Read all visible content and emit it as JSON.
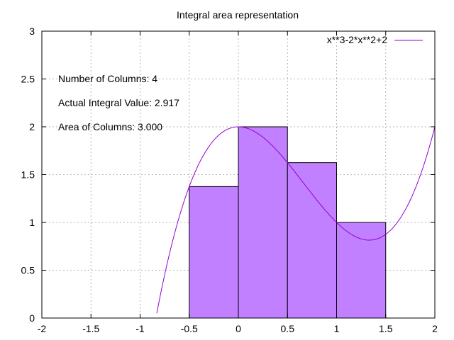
{
  "chart_data": {
    "type": "bar",
    "title": "Integral area representation",
    "xlabel": "",
    "ylabel": "",
    "xlim": [
      -2,
      2
    ],
    "ylim": [
      0,
      3
    ],
    "x_ticks": [
      "-2",
      "-1.5",
      "-1",
      "-0.5",
      "0",
      "0.5",
      "1",
      "1.5",
      "2"
    ],
    "y_ticks": [
      "0",
      "0.5",
      "1",
      "1.5",
      "2",
      "2.5",
      "3"
    ],
    "grid": true,
    "legend": {
      "position": "top-right",
      "entries": [
        "x**3-2*x**2+2"
      ]
    },
    "annotations": [
      "Number of Columns: 4",
      "Actual Integral Value: 2.917",
      "Area of Columns: 3.000"
    ],
    "bars": [
      {
        "x_start": -0.5,
        "x_end": 0.0,
        "value": 1.375
      },
      {
        "x_start": 0.0,
        "x_end": 0.5,
        "value": 2.0
      },
      {
        "x_start": 0.5,
        "x_end": 1.0,
        "value": 1.625
      },
      {
        "x_start": 1.0,
        "x_end": 1.5,
        "value": 1.0
      }
    ],
    "curve": {
      "expression": "x**3-2*x**2+2"
    },
    "colors": {
      "bar_fill": "#c080ff",
      "bar_stroke": "#000000",
      "curve": "#9400d3"
    }
  }
}
